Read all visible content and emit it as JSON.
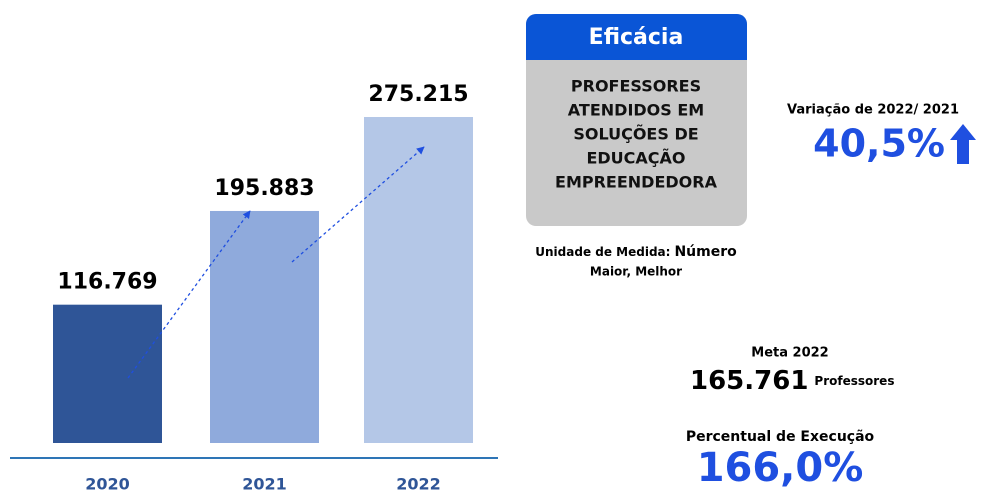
{
  "chart_data": {
    "type": "bar",
    "categories": [
      "2020",
      "2021",
      "2022"
    ],
    "values": [
      116769,
      195883,
      275215
    ],
    "value_labels": [
      "116.769",
      "195.883",
      "275.215"
    ],
    "colors": [
      "#2f5597",
      "#8faadc",
      "#b4c7e7"
    ],
    "panel": {
      "title": "Eficácia",
      "lines": [
        "PROFESSORES",
        "ATENDIDOS EM",
        "SOLUÇÕES DE",
        "EDUCAÇÃO",
        "EMPREENDEDORA"
      ]
    },
    "unit_label": "Unidade de Medida:",
    "unit_value": "Número",
    "direction": "Maior, Melhor",
    "variation_label": "Variação de 2022/ 2021",
    "variation_value": "40,5%",
    "target_label": "Meta 2022",
    "target_value": "165.761",
    "target_unit": "Professores",
    "execution_label": "Percentual de Execução",
    "execution_value": "166,0%"
  }
}
